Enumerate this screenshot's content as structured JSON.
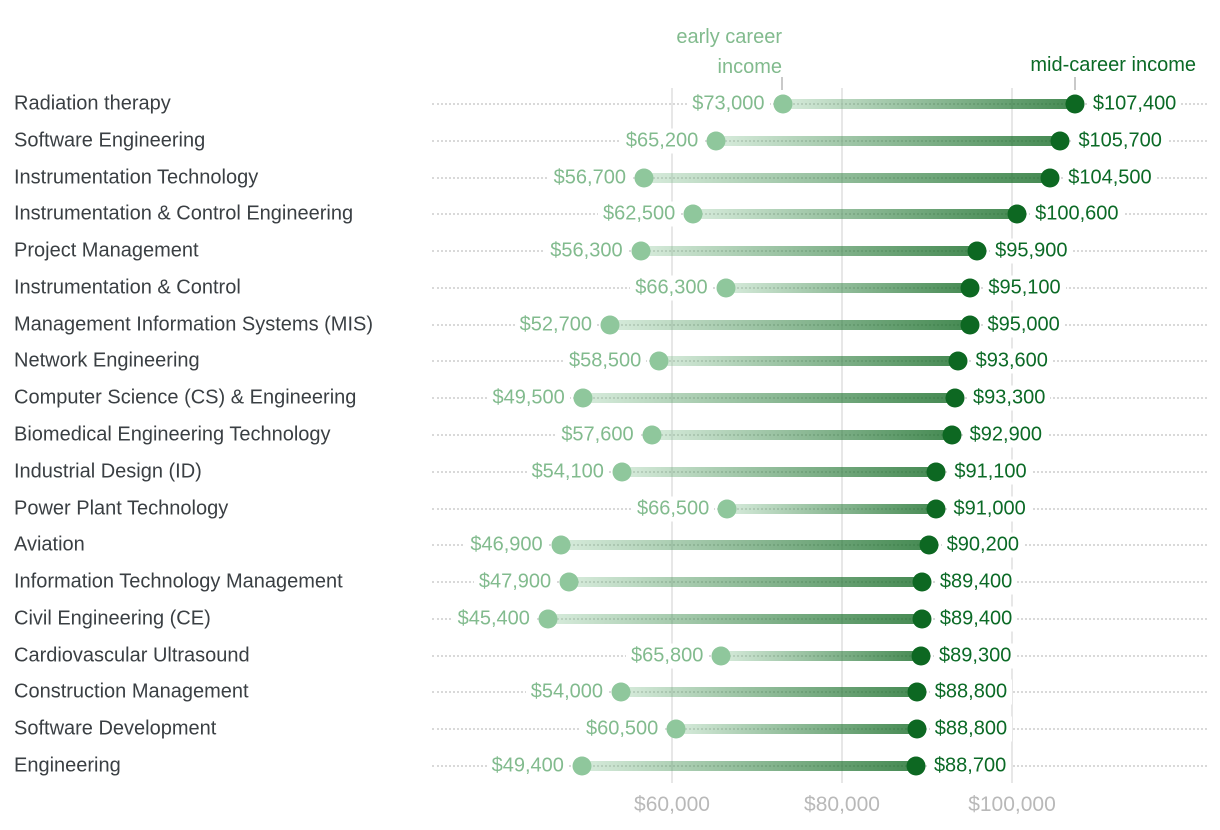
{
  "chart_data": {
    "type": "dumbbell",
    "legend": {
      "early_lines": [
        "early career",
        "income"
      ],
      "mid_label": "mid-career income"
    },
    "x_axis": {
      "tick_values": [
        60000,
        80000,
        100000
      ],
      "tick_labels": [
        "$60,000",
        "$80,000",
        "$100,000"
      ],
      "grid": true
    },
    "series_names": [
      "early career income",
      "mid-career income"
    ],
    "rows": [
      {
        "major": "Radiation therapy",
        "early": 73000,
        "early_label": "$73,000",
        "mid": 107400,
        "mid_label": "$107,400"
      },
      {
        "major": "Software Engineering",
        "early": 65200,
        "early_label": "$65,200",
        "mid": 105700,
        "mid_label": "$105,700"
      },
      {
        "major": "Instrumentation Technology",
        "early": 56700,
        "early_label": "$56,700",
        "mid": 104500,
        "mid_label": "$104,500"
      },
      {
        "major": "Instrumentation & Control Engineering",
        "early": 62500,
        "early_label": "$62,500",
        "mid": 100600,
        "mid_label": "$100,600"
      },
      {
        "major": "Project Management",
        "early": 56300,
        "early_label": "$56,300",
        "mid": 95900,
        "mid_label": "$95,900"
      },
      {
        "major": "Instrumentation & Control",
        "early": 66300,
        "early_label": "$66,300",
        "mid": 95100,
        "mid_label": "$95,100"
      },
      {
        "major": "Management Information Systems (MIS)",
        "early": 52700,
        "early_label": "$52,700",
        "mid": 95000,
        "mid_label": "$95,000"
      },
      {
        "major": "Network Engineering",
        "early": 58500,
        "early_label": "$58,500",
        "mid": 93600,
        "mid_label": "$93,600"
      },
      {
        "major": "Computer Science (CS) & Engineering",
        "early": 49500,
        "early_label": "$49,500",
        "mid": 93300,
        "mid_label": "$93,300"
      },
      {
        "major": "Biomedical Engineering Technology",
        "early": 57600,
        "early_label": "$57,600",
        "mid": 92900,
        "mid_label": "$92,900"
      },
      {
        "major": "Industrial Design (ID)",
        "early": 54100,
        "early_label": "$54,100",
        "mid": 91100,
        "mid_label": "$91,100"
      },
      {
        "major": "Power Plant Technology",
        "early": 66500,
        "early_label": "$66,500",
        "mid": 91000,
        "mid_label": "$91,000"
      },
      {
        "major": "Aviation",
        "early": 46900,
        "early_label": "$46,900",
        "mid": 90200,
        "mid_label": "$90,200"
      },
      {
        "major": "Information Technology Management",
        "early": 47900,
        "early_label": "$47,900",
        "mid": 89400,
        "mid_label": "$89,400"
      },
      {
        "major": "Civil Engineering (CE)",
        "early": 45400,
        "early_label": "$45,400",
        "mid": 89400,
        "mid_label": "$89,400"
      },
      {
        "major": "Cardiovascular Ultrasound",
        "early": 65800,
        "early_label": "$65,800",
        "mid": 89300,
        "mid_label": "$89,300"
      },
      {
        "major": "Construction Management",
        "early": 54000,
        "early_label": "$54,000",
        "mid": 88800,
        "mid_label": "$88,800"
      },
      {
        "major": "Software Development",
        "early": 60500,
        "early_label": "$60,500",
        "mid": 88800,
        "mid_label": "$88,800"
      },
      {
        "major": "Engineering",
        "early": 49400,
        "early_label": "$49,400",
        "mid": 88700,
        "mid_label": "$88,700"
      }
    ],
    "colors": {
      "early_dot": "#8FC79C",
      "mid_dot": "#0D6822",
      "early_text": "#82BB8E",
      "mid_text": "#0B6A26",
      "axis_text": "#B9B9B9",
      "category_text": "#3A3F43",
      "gridline": "#E7E7E7",
      "leader_dots": "#D9D9D9"
    }
  }
}
